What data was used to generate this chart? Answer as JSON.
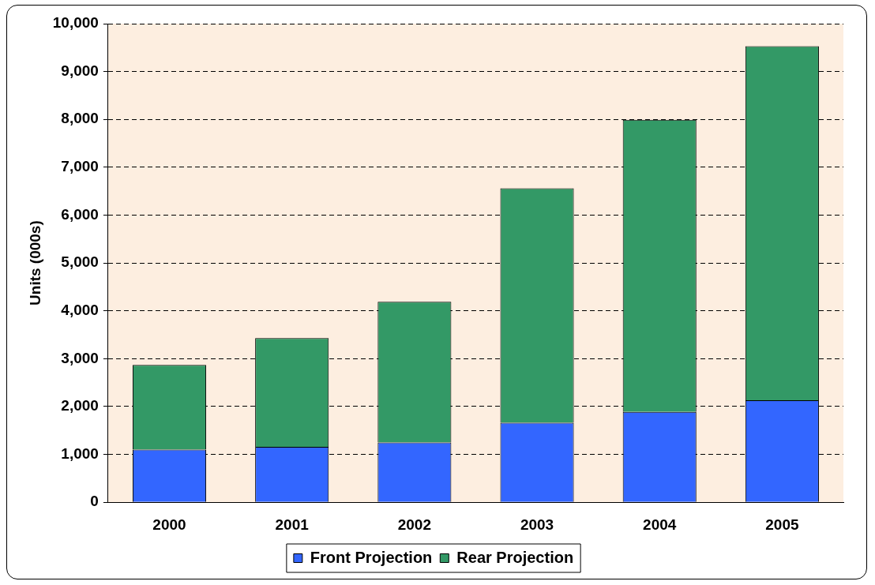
{
  "chart_data": {
    "type": "bar",
    "ylabel": "Units (000s)",
    "categories": [
      "2000",
      "2001",
      "2002",
      "2003",
      "2004",
      "2005"
    ],
    "stacked": true,
    "series": [
      {
        "name": "Front Projection",
        "color": "#3366ff",
        "values": [
          1100,
          1160,
          1250,
          1660,
          1890,
          2130
        ]
      },
      {
        "name": "Rear Projection",
        "color": "#339966",
        "values": [
          1770,
          2270,
          2940,
          4900,
          6100,
          7400
        ]
      }
    ],
    "ylim": [
      0,
      10000
    ],
    "yticks": [
      0,
      {
        "value": 1000,
        "label": "1,000"
      },
      {
        "value": 2000,
        "label": "2,000"
      },
      {
        "value": 3000,
        "label": "3,000"
      },
      {
        "value": 4000,
        "label": "4,000"
      },
      {
        "value": 5000,
        "label": "5,000"
      },
      {
        "value": 6000,
        "label": "6,000"
      },
      {
        "value": 7000,
        "label": "7,000"
      },
      {
        "value": 8000,
        "label": "8,000"
      },
      {
        "value": 9000,
        "label": "9,000"
      },
      {
        "value": 10000,
        "label": "10,000"
      }
    ],
    "grid": "y",
    "legend": "bottom"
  }
}
